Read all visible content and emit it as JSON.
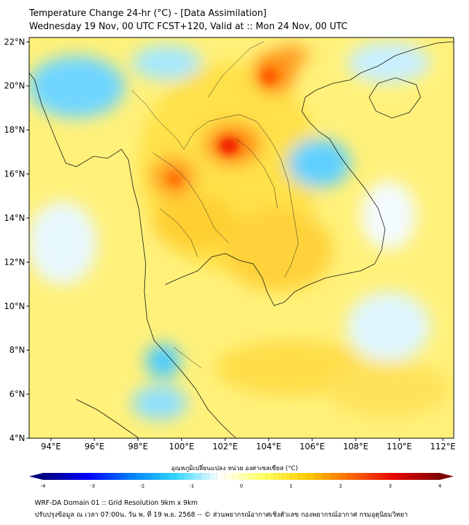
{
  "title_line1": "Temperature Change 24-hr (°C) - [Data Assimilation]",
  "title_line2": "Wednesday 19 Nov, 00 UTC FCST+120, Valid at :: Mon 24 Nov, 00 UTC",
  "colorbar": {
    "label": "อุณหภูมิเปลี่ยนแปลง หน่วย องศาเซลเซียส (°C)",
    "min": -4,
    "max": 4,
    "ticks": [
      "-4",
      "-3",
      "-2",
      "-1",
      "0",
      "1",
      "2",
      "3",
      "4"
    ],
    "colors": [
      "#00007f",
      "#0000ff",
      "#0080ff",
      "#33d6ff",
      "#ffffff",
      "#ffff66",
      "#ffcc00",
      "#ff6600",
      "#e60000",
      "#7f0000"
    ]
  },
  "map": {
    "lon_range": [
      93,
      112.5
    ],
    "lat_range": [
      4,
      22.2
    ],
    "lat_ticks": [
      "4°N",
      "6°N",
      "8°N",
      "10°N",
      "12°N",
      "14°N",
      "16°N",
      "18°N",
      "20°N",
      "22°N"
    ],
    "lat_values": [
      4,
      6,
      8,
      10,
      12,
      14,
      16,
      18,
      20,
      22
    ],
    "lon_ticks": [
      "94°E",
      "96°E",
      "98°E",
      "100°E",
      "102°E",
      "104°E",
      "106°E",
      "108°E",
      "110°E",
      "112°E"
    ],
    "lon_values": [
      94,
      96,
      98,
      100,
      102,
      104,
      106,
      108,
      110,
      112
    ],
    "field_background_color": "#fff17a"
  },
  "footer_line1": "WRF-DA Domain 01 :: Grid Resolution 9km x 9km",
  "footer_line2": "ปรับปรุงข้อมูล ณ เวลา 07:00น. วัน พ. ที่ 19 พ.ย. 2568 -- © ส่วนพยากรณ์อากาศเชิงตัวเลข กองพยากรณ์อากาศ กรมอุตุนิยมวิทยา"
}
